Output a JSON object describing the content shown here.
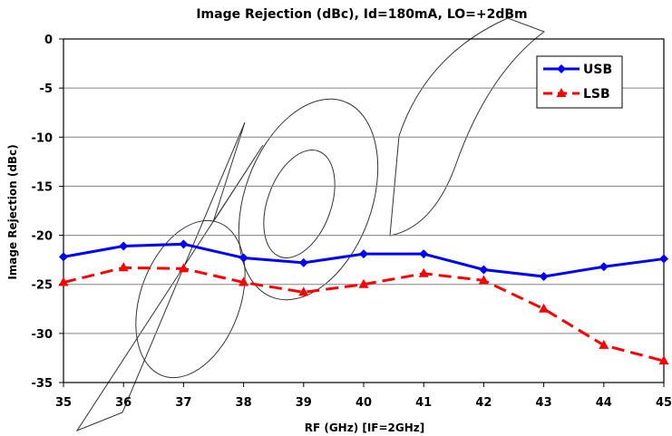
{
  "chart_data": {
    "type": "line",
    "title": "Image Rejection (dBc), Id=180mA, LO=+2dBm",
    "xlabel": "RF (GHz) [IF=2GHz]",
    "ylabel": "Image Rejection (dBc)",
    "xlim": [
      35,
      45
    ],
    "ylim": [
      -35,
      0
    ],
    "xticks": [
      35,
      36,
      37,
      38,
      39,
      40,
      41,
      42,
      43,
      44,
      45
    ],
    "yticks": [
      0,
      -5,
      -10,
      -15,
      -20,
      -25,
      -30,
      -35
    ],
    "grid": true,
    "legend_position": "top-right",
    "x": [
      35,
      36,
      37,
      38,
      39,
      40,
      41,
      42,
      43,
      44,
      45
    ],
    "series": [
      {
        "name": "USB",
        "color": "#0000ff",
        "line_style": "solid",
        "marker": "diamond",
        "values": [
          -22.2,
          -21.1,
          -20.9,
          -22.3,
          -22.8,
          -21.9,
          -21.9,
          -23.5,
          -24.2,
          -23.2,
          -22.4
        ]
      },
      {
        "name": "LSB",
        "color": "#ff0000",
        "line_style": "dashed",
        "marker": "triangle",
        "values": [
          -24.8,
          -23.3,
          -23.4,
          -24.8,
          -25.8,
          -25.0,
          -23.9,
          -24.6,
          -27.5,
          -31.2,
          -32.8
        ]
      }
    ]
  }
}
